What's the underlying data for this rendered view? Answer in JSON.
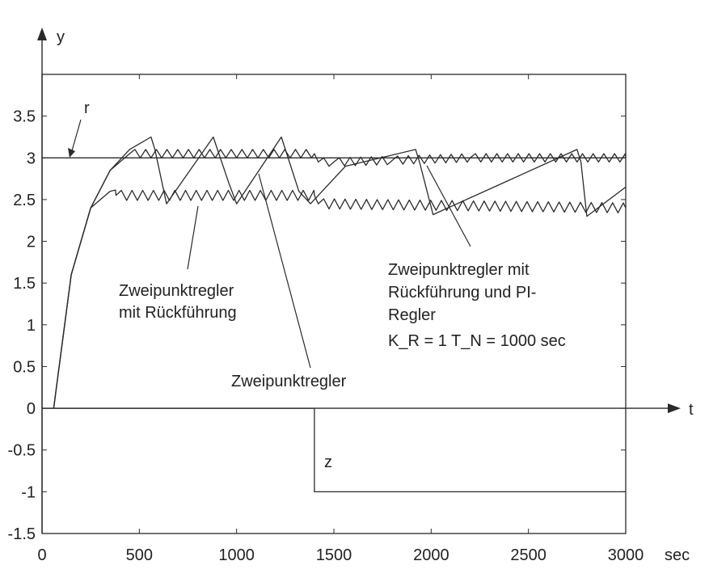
{
  "chart_data": {
    "type": "line",
    "xlim": [
      0,
      3000
    ],
    "ylim": [
      -1.5,
      4
    ],
    "x_unit": "sec",
    "x_axis_name": "t",
    "y_axis_name": "y",
    "x_ticks": [
      0,
      500,
      1000,
      1500,
      2000,
      2500,
      3000
    ],
    "x_tick_labels": [
      "0",
      "500",
      "1000",
      "1500",
      "2000",
      "2500",
      "3000"
    ],
    "y_ticks": [
      -1.5,
      -1,
      -0.5,
      0,
      0.5,
      1,
      1.5,
      2,
      2.5,
      3,
      3.5
    ],
    "y_tick_labels": [
      "-1.5",
      "-1",
      "-0.5",
      "0",
      "0.5",
      "1",
      "1.5",
      "2",
      "2.5",
      "3",
      "3.5"
    ],
    "grid": false,
    "series": [
      {
        "name": "r",
        "x": [
          0,
          3000
        ],
        "y": [
          3,
          3
        ]
      },
      {
        "name": "z",
        "x": [
          0,
          1400,
          1400,
          3000
        ],
        "y": [
          0,
          0,
          -1,
          -1
        ]
      },
      {
        "name": "Zweipunktregler",
        "x": [
          60,
          150,
          250,
          350,
          450,
          560,
          580,
          640,
          880,
          960,
          1000,
          1230,
          1320,
          1380,
          1560,
          1920,
          1940,
          2010,
          2750,
          2770,
          2800,
          3000
        ],
        "y": [
          0,
          1.6,
          2.4,
          2.85,
          3.1,
          3.25,
          3.1,
          2.45,
          3.25,
          2.7,
          2.45,
          3.25,
          2.6,
          2.45,
          2.9,
          3.1,
          2.95,
          2.32,
          3.1,
          2.95,
          2.3,
          2.65
        ]
      },
      {
        "name": "Zweipunktregler mit Rückführung",
        "x": [
          60,
          150,
          250,
          350,
          380,
          1400,
          1420,
          3000
        ],
        "y": [
          0,
          1.6,
          2.4,
          2.6,
          2.55,
          2.55,
          2.45,
          2.4
        ]
      },
      {
        "name": "Zweipunktregler mit Rückführung und PI-Regler",
        "x": [
          60,
          150,
          250,
          350,
          450,
          1400,
          1420,
          1500,
          1800,
          2200,
          3000
        ],
        "y": [
          0,
          1.6,
          2.4,
          2.85,
          3.05,
          3.05,
          2.95,
          2.95,
          2.97,
          3.0,
          3.0
        ]
      }
    ],
    "annotations": {
      "r": "r",
      "z": "z",
      "zwei": "Zweipunktregler",
      "rueck_line1": "Zweipunktregler",
      "rueck_line2": "mit Rückführung",
      "pi_line1": "Zweipunktregler mit",
      "pi_line2": "Rückführung und PI-",
      "pi_line3": "Regler",
      "pi_params": "K_R = 1 T_N = 1000 sec"
    }
  }
}
